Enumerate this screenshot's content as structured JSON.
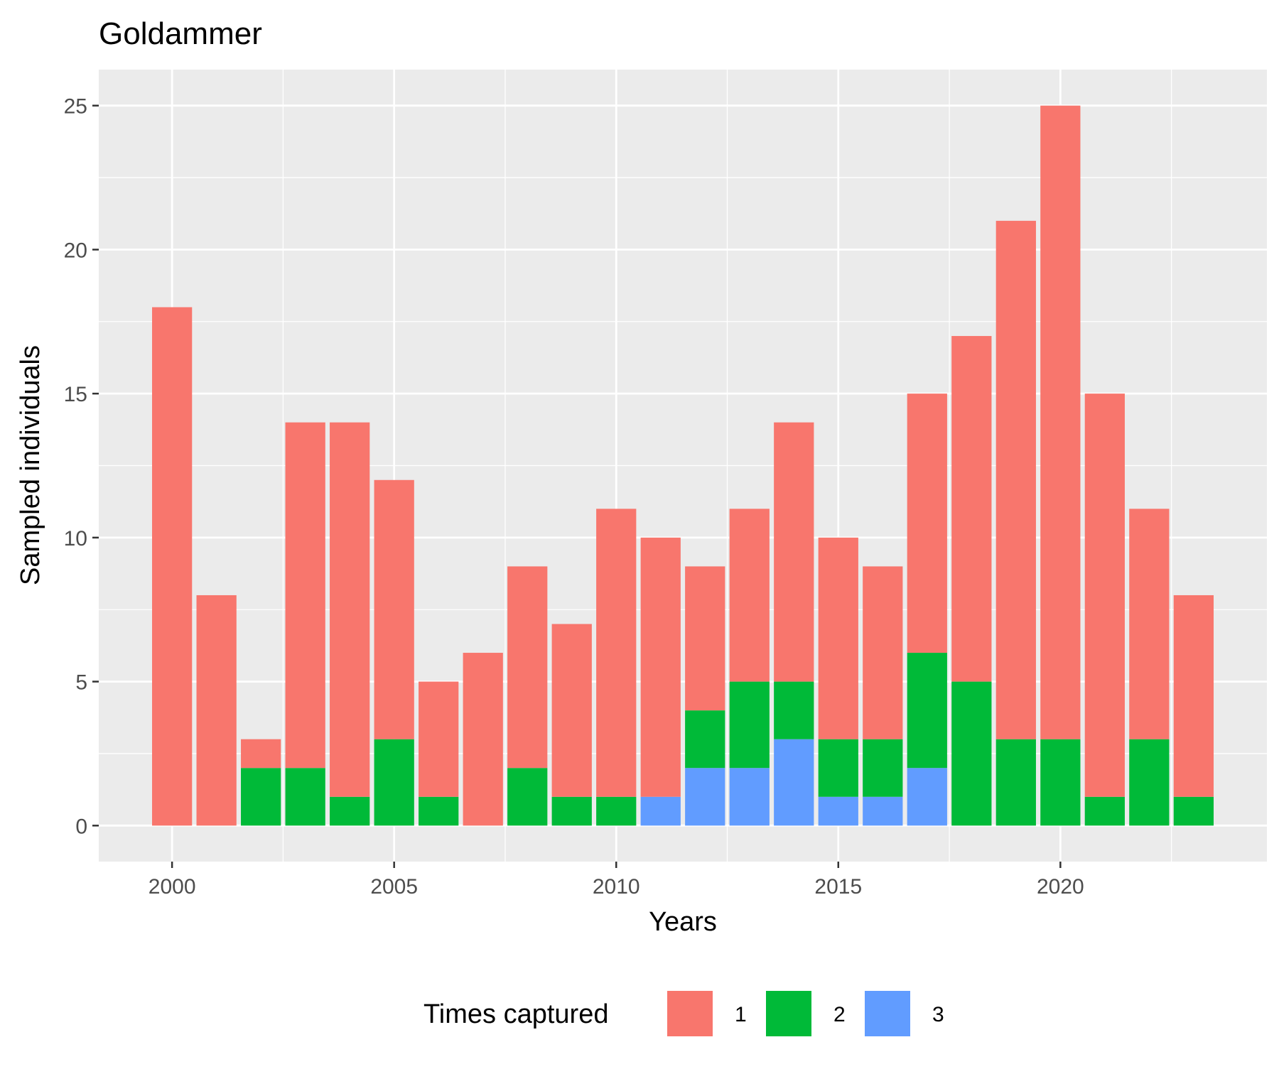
{
  "chart_data": {
    "type": "bar",
    "stacked": true,
    "title": "Goldammer",
    "xlabel": "Years",
    "ylabel": "Sampled individuals",
    "x": [
      2000,
      2001,
      2002,
      2003,
      2004,
      2005,
      2006,
      2007,
      2008,
      2009,
      2010,
      2011,
      2012,
      2013,
      2014,
      2015,
      2016,
      2017,
      2018,
      2019,
      2020,
      2021,
      2022,
      2023
    ],
    "xlim": [
      1998.35,
      2024.65
    ],
    "ylim": [
      -1.25,
      26.25
    ],
    "x_ticks": [
      2000,
      2005,
      2010,
      2015,
      2020
    ],
    "y_ticks": [
      0,
      5,
      10,
      15,
      20,
      25
    ],
    "grid": true,
    "legend": {
      "title": "Times captured",
      "position": "bottom"
    },
    "series": [
      {
        "name": "1",
        "color": "#F8766D",
        "values": [
          18,
          8,
          1,
          12,
          13,
          9,
          4,
          6,
          7,
          6,
          10,
          9,
          5,
          6,
          9,
          7,
          6,
          9,
          12,
          18,
          22,
          14,
          8,
          7
        ]
      },
      {
        "name": "2",
        "color": "#00BA38",
        "values": [
          0,
          0,
          2,
          2,
          1,
          3,
          1,
          0,
          2,
          1,
          1,
          0,
          2,
          3,
          2,
          2,
          2,
          4,
          5,
          3,
          3,
          1,
          3,
          1
        ]
      },
      {
        "name": "3",
        "color": "#619CFF",
        "values": [
          0,
          0,
          0,
          0,
          0,
          0,
          0,
          0,
          0,
          0,
          0,
          1,
          2,
          2,
          3,
          1,
          1,
          2,
          0,
          0,
          0,
          0,
          0,
          0
        ]
      }
    ],
    "stack_order_bottom_to_top": [
      "3",
      "2",
      "1"
    ],
    "panel_background": "#EBEBEB",
    "grid_color": "#FFFFFF"
  }
}
